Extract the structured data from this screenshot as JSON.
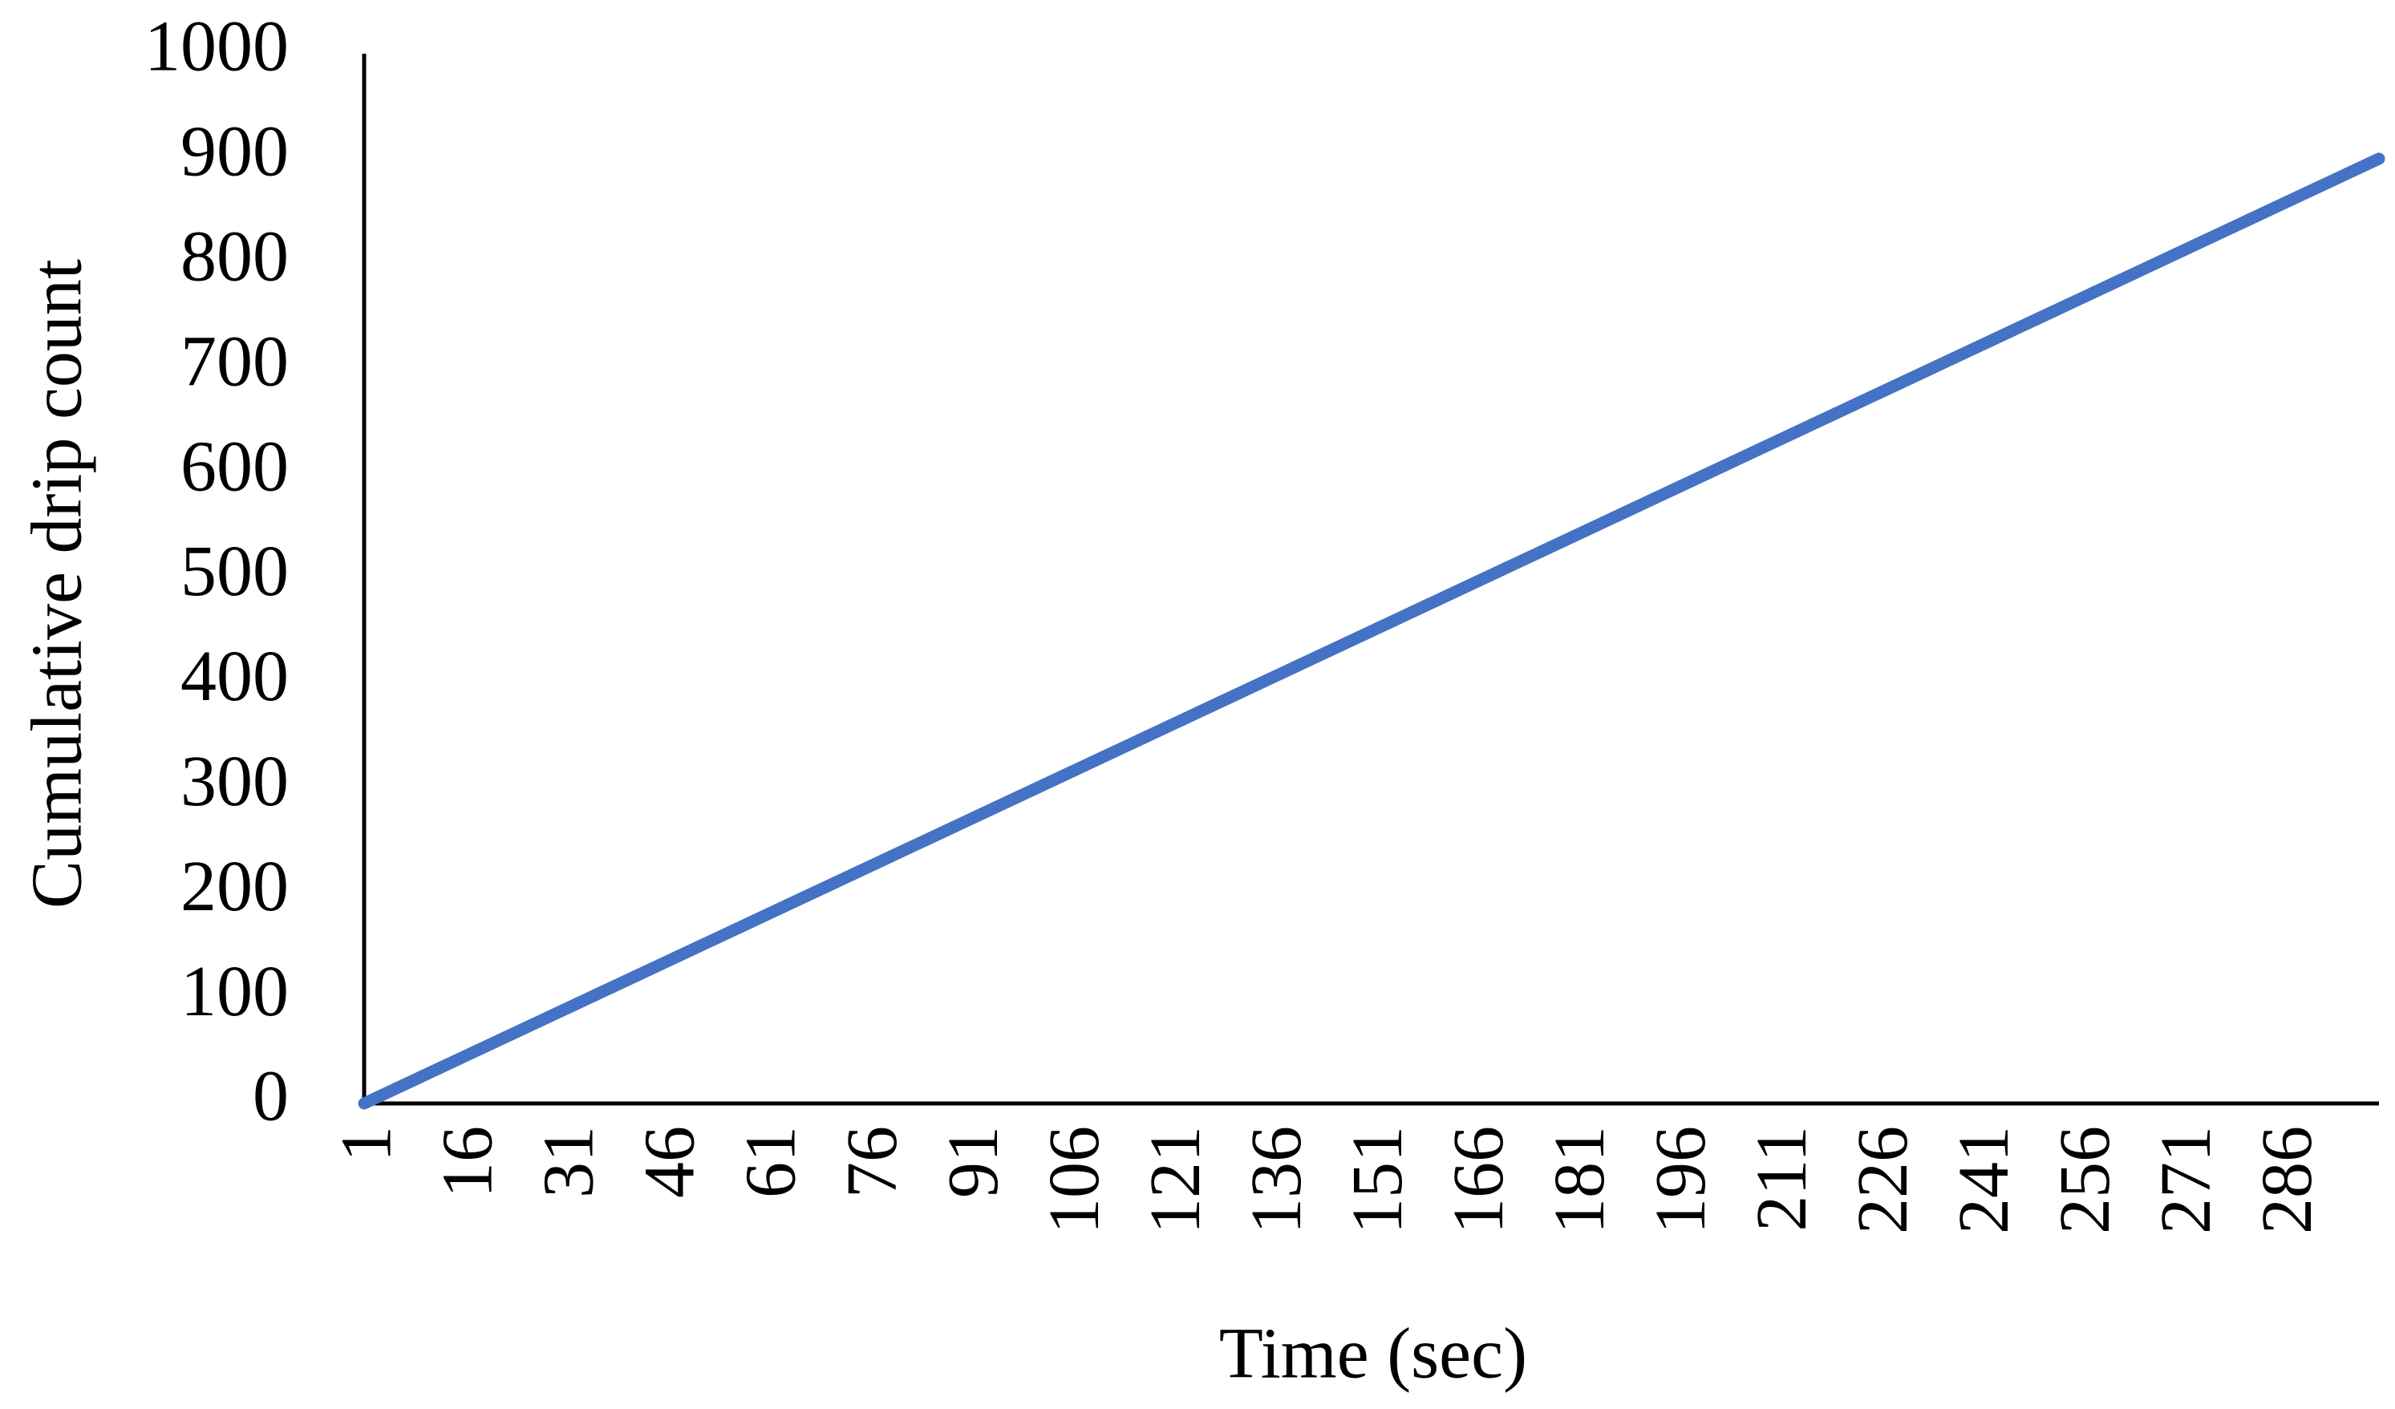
{
  "chart_data": {
    "type": "line",
    "x_label": "Time (sec)",
    "y_label": "Cumulative drip count",
    "series": [
      {
        "name": "Cumulative drip count",
        "color": "#4472c4",
        "x": [
          1,
          300
        ],
        "values": [
          0,
          900
        ]
      }
    ],
    "xlim": [
      1,
      300
    ],
    "xticks": [
      1,
      16,
      31,
      46,
      61,
      76,
      91,
      106,
      121,
      136,
      151,
      166,
      181,
      196,
      211,
      226,
      241,
      256,
      271,
      286
    ],
    "ylim": [
      0,
      1000
    ],
    "yticks": [
      0,
      100,
      200,
      300,
      400,
      500,
      600,
      700,
      800,
      900,
      1000
    ],
    "grid": false,
    "legend": false
  }
}
